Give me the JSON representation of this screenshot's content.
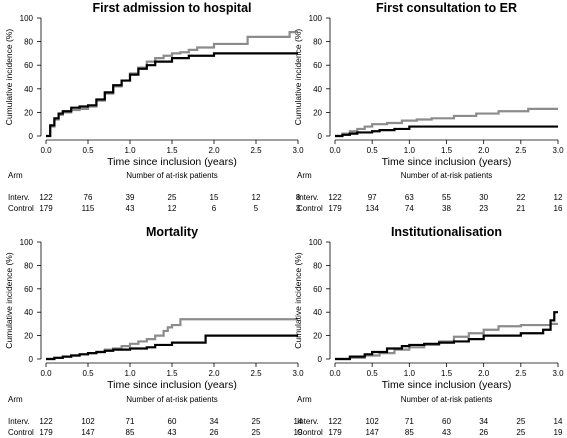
{
  "risk_table": {
    "header_label": "Arm",
    "header_title": "Number of at-risk patients",
    "arms": [
      "Interv.",
      "Control"
    ]
  },
  "colors": {
    "intervention": "#8c8c8c",
    "control": "#000000"
  },
  "chart_data": [
    {
      "type": "line",
      "title": "First admission to hospital",
      "xlabel": "Time since inclusion (years)",
      "ylabel": "Cumulative incidence (%)",
      "xlim": [
        0,
        3
      ],
      "ylim": [
        0,
        100
      ],
      "xticks": [
        "0.0",
        "0.5",
        "1.0",
        "1.5",
        "2.0",
        "2.5",
        "3.0"
      ],
      "yticks": [
        "0",
        "20",
        "40",
        "60",
        "80",
        "100"
      ],
      "series": [
        {
          "color": "#8c8c8c",
          "x": [
            0,
            0.05,
            0.1,
            0.15,
            0.2,
            0.3,
            0.4,
            0.5,
            0.6,
            0.7,
            0.8,
            0.9,
            1.0,
            1.1,
            1.2,
            1.3,
            1.4,
            1.5,
            1.6,
            1.7,
            1.8,
            2.0,
            2.4,
            2.9,
            3.0
          ],
          "y": [
            0,
            8,
            14,
            18,
            20,
            22,
            23,
            25,
            30,
            36,
            42,
            47,
            53,
            58,
            63,
            66,
            68,
            70,
            71,
            73,
            75,
            78,
            84,
            88,
            88
          ]
        },
        {
          "color": "#000000",
          "x": [
            0,
            0.05,
            0.1,
            0.15,
            0.2,
            0.3,
            0.4,
            0.5,
            0.6,
            0.7,
            0.8,
            0.9,
            1.0,
            1.1,
            1.2,
            1.3,
            1.5,
            1.7,
            2.0,
            3.0
          ],
          "y": [
            0,
            9,
            15,
            19,
            21,
            24,
            25,
            26,
            31,
            37,
            43,
            47,
            52,
            57,
            60,
            63,
            66,
            68,
            70,
            70
          ]
        }
      ],
      "risk": {
        "x": [
          "0.0",
          "0.5",
          "1.0",
          "1.5",
          "2.0",
          "2.5",
          "3.0"
        ],
        "interv": [
          "122",
          "76",
          "39",
          "25",
          "15",
          "12",
          "8"
        ],
        "control": [
          "179",
          "115",
          "43",
          "12",
          "6",
          "5",
          "3"
        ]
      }
    },
    {
      "type": "line",
      "title": "First consultation to ER",
      "xlabel": "Time since inclusion (years)",
      "ylabel": "Cumulative incidence (%)",
      "xlim": [
        0,
        3
      ],
      "ylim": [
        0,
        100
      ],
      "xticks": [
        "0.0",
        "0.5",
        "1.0",
        "1.5",
        "2.0",
        "2.5",
        "3.0"
      ],
      "yticks": [
        "0",
        "20",
        "40",
        "60",
        "80",
        "100"
      ],
      "series": [
        {
          "color": "#8c8c8c",
          "x": [
            0,
            0.1,
            0.2,
            0.3,
            0.4,
            0.5,
            0.7,
            0.9,
            1.1,
            1.3,
            1.6,
            1.9,
            2.2,
            2.6,
            3.0
          ],
          "y": [
            0,
            2,
            4,
            6,
            8,
            10,
            11,
            13,
            14,
            15,
            17,
            19,
            21,
            23,
            23
          ]
        },
        {
          "color": "#000000",
          "x": [
            0,
            0.1,
            0.2,
            0.3,
            0.5,
            0.6,
            0.8,
            1.0,
            1.5,
            3.0
          ],
          "y": [
            0,
            1,
            2,
            3,
            4,
            5,
            6,
            8,
            8,
            8
          ]
        }
      ],
      "risk": {
        "x": [
          "0.0",
          "0.5",
          "1.0",
          "1.5",
          "2.0",
          "2.5",
          "3.0"
        ],
        "interv": [
          "122",
          "97",
          "63",
          "55",
          "30",
          "22",
          "12"
        ],
        "control": [
          "179",
          "134",
          "74",
          "38",
          "23",
          "21",
          "16"
        ]
      }
    },
    {
      "type": "line",
      "title": "Mortality",
      "xlabel": "Time since inclusion (years)",
      "ylabel": "Cumulative incidence (%)",
      "xlim": [
        0,
        3
      ],
      "ylim": [
        0,
        100
      ],
      "xticks": [
        "0.0",
        "0.5",
        "1.0",
        "1.5",
        "2.0",
        "2.5",
        "3.0"
      ],
      "yticks": [
        "0",
        "20",
        "40",
        "60",
        "80",
        "100"
      ],
      "series": [
        {
          "color": "#8c8c8c",
          "x": [
            0,
            0.1,
            0.2,
            0.3,
            0.4,
            0.5,
            0.6,
            0.7,
            0.8,
            0.9,
            1.0,
            1.1,
            1.2,
            1.3,
            1.4,
            1.45,
            1.5,
            1.6,
            3.0
          ],
          "y": [
            0,
            1,
            2,
            3,
            4,
            5,
            6,
            8,
            9,
            11,
            13,
            15,
            17,
            20,
            24,
            27,
            29,
            34,
            34
          ]
        },
        {
          "color": "#000000",
          "x": [
            0,
            0.1,
            0.2,
            0.3,
            0.4,
            0.5,
            0.6,
            0.7,
            0.8,
            1.0,
            1.2,
            1.3,
            1.5,
            1.9,
            3.0
          ],
          "y": [
            0,
            1,
            2,
            3,
            4,
            5,
            6,
            7,
            8,
            9,
            10,
            12,
            14,
            20,
            20
          ]
        }
      ],
      "risk": {
        "x": [
          "0.0",
          "0.5",
          "1.0",
          "1.5",
          "2.0",
          "2.5",
          "3.0"
        ],
        "interv": [
          "122",
          "102",
          "71",
          "60",
          "34",
          "25",
          "14"
        ],
        "control": [
          "179",
          "147",
          "85",
          "43",
          "26",
          "25",
          "19"
        ]
      }
    },
    {
      "type": "line",
      "title": "Institutionalisation",
      "xlabel": "Time since inclusion (years)",
      "ylabel": "Cumulative incidence (%)",
      "xlim": [
        0,
        3
      ],
      "ylim": [
        0,
        100
      ],
      "xticks": [
        "0.0",
        "0.5",
        "1.0",
        "1.5",
        "2.0",
        "2.5",
        "3.0"
      ],
      "yticks": [
        "0",
        "20",
        "40",
        "60",
        "80",
        "100"
      ],
      "series": [
        {
          "color": "#8c8c8c",
          "x": [
            0,
            0.2,
            0.4,
            0.6,
            0.8,
            1.0,
            1.2,
            1.4,
            1.6,
            1.8,
            2.0,
            2.2,
            2.5,
            2.9,
            3.0
          ],
          "y": [
            0,
            1,
            3,
            5,
            8,
            10,
            12,
            15,
            19,
            22,
            25,
            28,
            29,
            30,
            30
          ]
        },
        {
          "color": "#000000",
          "x": [
            0,
            0.2,
            0.4,
            0.5,
            0.7,
            0.9,
            1.0,
            1.2,
            1.4,
            1.6,
            1.8,
            2.0,
            2.5,
            2.8,
            2.9,
            2.95,
            3.0
          ],
          "y": [
            0,
            2,
            4,
            6,
            9,
            11,
            12,
            13,
            14,
            15,
            17,
            20,
            22,
            25,
            33,
            40,
            40
          ]
        }
      ],
      "risk": {
        "x": [
          "0.0",
          "0.5",
          "1.0",
          "1.5",
          "2.0",
          "2.5",
          "3.0"
        ],
        "interv": [
          "122",
          "102",
          "71",
          "60",
          "34",
          "25",
          "14"
        ],
        "control": [
          "179",
          "147",
          "85",
          "43",
          "26",
          "25",
          "19"
        ]
      }
    }
  ]
}
